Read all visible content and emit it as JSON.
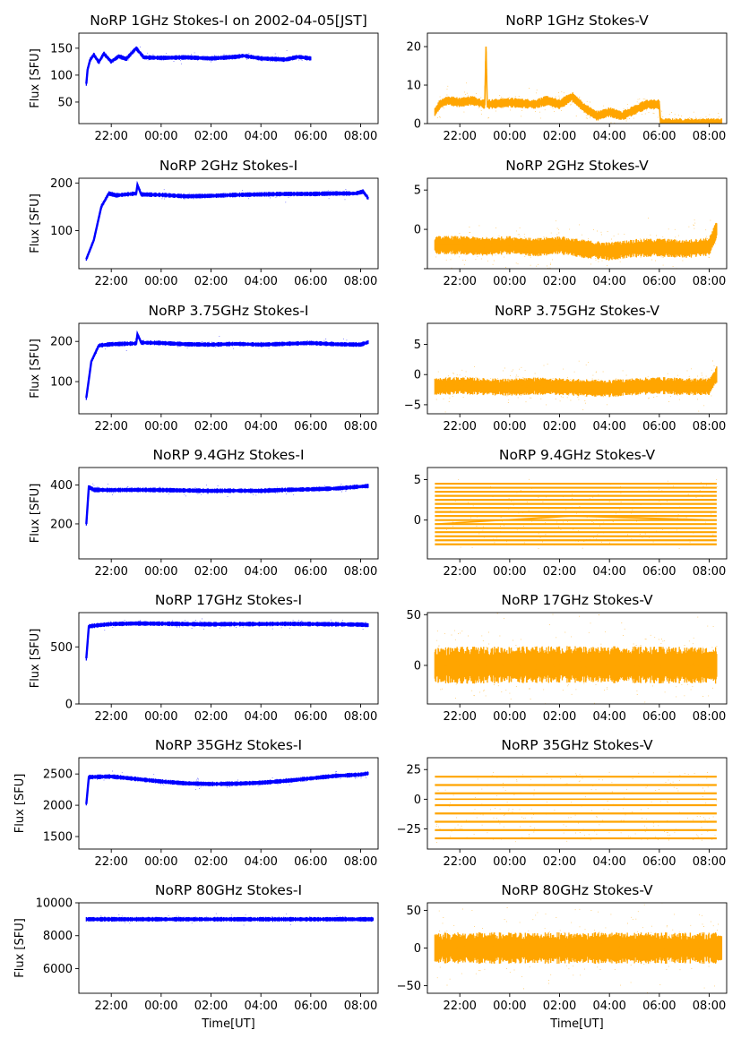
{
  "figure": {
    "xlabel": "Time[UT]",
    "x_tick_labels": [
      "22:00",
      "00:00",
      "02:00",
      "04:00",
      "06:00",
      "08:00"
    ],
    "colors": {
      "stokes_i": "#0000ff",
      "stokes_v": "#ffa500"
    }
  },
  "chart_data": [
    {
      "type": "scatter",
      "title": "NoRP 1GHz Stokes-I on 2002-04-05[JST]",
      "ylabel": "Flux [SFU]",
      "xlabel": "",
      "xlim": [
        20.7,
        32.7
      ],
      "ylim": [
        10,
        178
      ],
      "y_ticks": [
        50,
        100,
        150
      ],
      "y_tick_labels": [
        "50",
        "100",
        "150"
      ],
      "series": [
        {
          "color": "#0000ff",
          "x_range": [
            21.0,
            30.0
          ],
          "points": [
            [
              21.0,
              84
            ],
            [
              21.05,
              110
            ],
            [
              21.15,
              128
            ],
            [
              21.3,
              138
            ],
            [
              21.5,
              124
            ],
            [
              21.7,
              140
            ],
            [
              22.0,
              125
            ],
            [
              22.3,
              135
            ],
            [
              22.6,
              130
            ],
            [
              23.0,
              150
            ],
            [
              23.3,
              133
            ],
            [
              24.0,
              132
            ],
            [
              25.0,
              133
            ],
            [
              26.0,
              131
            ],
            [
              27.0,
              134
            ],
            [
              27.3,
              136
            ],
            [
              28.0,
              131
            ],
            [
              29.0,
              129
            ],
            [
              29.5,
              134
            ],
            [
              30.0,
              131
            ]
          ]
        }
      ]
    },
    {
      "type": "scatter",
      "title": "NoRP 1GHz Stokes-V",
      "ylabel": "",
      "xlabel": "",
      "xlim": [
        20.7,
        32.7
      ],
      "ylim": [
        0,
        23.5
      ],
      "y_ticks": [
        0,
        10,
        20
      ],
      "y_tick_labels": [
        "0",
        "10",
        "20"
      ],
      "series": [
        {
          "color": "#ffa500",
          "x_range": [
            21.0,
            32.5
          ],
          "points": [
            [
              21.0,
              3
            ],
            [
              21.2,
              5
            ],
            [
              21.5,
              6
            ],
            [
              22.0,
              5.5
            ],
            [
              22.5,
              6
            ],
            [
              23.0,
              5
            ],
            [
              23.05,
              20
            ],
            [
              23.1,
              5
            ],
            [
              24.0,
              5.5
            ],
            [
              25.0,
              5
            ],
            [
              25.5,
              6
            ],
            [
              26.0,
              5
            ],
            [
              26.5,
              7
            ],
            [
              27.0,
              4
            ],
            [
              27.5,
              2
            ],
            [
              28.0,
              3
            ],
            [
              28.5,
              2
            ],
            [
              29.0,
              3.5
            ],
            [
              29.5,
              5
            ],
            [
              30.0,
              5
            ],
            [
              30.05,
              0.1
            ],
            [
              32.5,
              0.1
            ]
          ]
        }
      ]
    },
    {
      "type": "scatter",
      "title": "NoRP 2GHz Stokes-I",
      "ylabel": "Flux [SFU]",
      "xlabel": "",
      "xlim": [
        20.7,
        32.7
      ],
      "ylim": [
        20,
        210
      ],
      "y_ticks": [
        100,
        200
      ],
      "y_tick_labels": [
        "100",
        "200"
      ],
      "series": [
        {
          "color": "#0000ff",
          "x_range": [
            21.0,
            32.3
          ],
          "points": [
            [
              21.0,
              40
            ],
            [
              21.3,
              80
            ],
            [
              21.6,
              150
            ],
            [
              21.9,
              178
            ],
            [
              22.2,
              174
            ],
            [
              23.0,
              178
            ],
            [
              23.05,
              196
            ],
            [
              23.2,
              176
            ],
            [
              24.0,
              175
            ],
            [
              25.0,
              172
            ],
            [
              26.0,
              173
            ],
            [
              27.0,
              175
            ],
            [
              28.0,
              176
            ],
            [
              29.0,
              177
            ],
            [
              30.0,
              177
            ],
            [
              31.0,
              178
            ],
            [
              31.8,
              178
            ],
            [
              32.1,
              182
            ],
            [
              32.3,
              168
            ]
          ]
        }
      ]
    },
    {
      "type": "scatter",
      "title": "NoRP 2GHz Stokes-V",
      "ylabel": "",
      "xlabel": "",
      "xlim": [
        20.7,
        32.7
      ],
      "ylim": [
        -5,
        6.5
      ],
      "y_ticks": [
        -5,
        0,
        5
      ],
      "y_tick_labels": [
        "",
        "0",
        "5"
      ],
      "series": [
        {
          "color": "#ffa500",
          "x_range": [
            21.0,
            32.3
          ],
          "points": [
            [
              21.0,
              -2
            ],
            [
              22.0,
              -2
            ],
            [
              23.0,
              -2.2
            ],
            [
              24.0,
              -2
            ],
            [
              25.0,
              -2.3
            ],
            [
              26.0,
              -2
            ],
            [
              27.0,
              -2.5
            ],
            [
              28.0,
              -2.8
            ],
            [
              29.0,
              -2.4
            ],
            [
              30.0,
              -2.3
            ],
            [
              31.0,
              -2.5
            ],
            [
              32.0,
              -2.2
            ],
            [
              32.3,
              0
            ]
          ]
        }
      ]
    },
    {
      "type": "scatter",
      "title": "NoRP 3.75GHz Stokes-I",
      "ylabel": "Flux [SFU]",
      "xlabel": "",
      "xlim": [
        20.7,
        32.7
      ],
      "ylim": [
        20,
        245
      ],
      "y_ticks": [
        100,
        200
      ],
      "y_tick_labels": [
        "100",
        "200"
      ],
      "series": [
        {
          "color": "#0000ff",
          "x_range": [
            21.0,
            32.3
          ],
          "points": [
            [
              21.0,
              60
            ],
            [
              21.2,
              150
            ],
            [
              21.5,
              190
            ],
            [
              22.0,
              193
            ],
            [
              23.0,
              195
            ],
            [
              23.05,
              218
            ],
            [
              23.2,
              197
            ],
            [
              24.0,
              196
            ],
            [
              25.0,
              193
            ],
            [
              26.0,
              192
            ],
            [
              27.0,
              194
            ],
            [
              28.0,
              192
            ],
            [
              29.0,
              194
            ],
            [
              30.0,
              196
            ],
            [
              31.0,
              193
            ],
            [
              32.0,
              192
            ],
            [
              32.3,
              198
            ]
          ]
        }
      ]
    },
    {
      "type": "scatter",
      "title": "NoRP 3.75GHz Stokes-V",
      "ylabel": "",
      "xlabel": "",
      "xlim": [
        20.7,
        32.7
      ],
      "ylim": [
        -6.5,
        8.5
      ],
      "y_ticks": [
        -5,
        0,
        5
      ],
      "y_tick_labels": [
        "−5",
        "0",
        "5"
      ],
      "series": [
        {
          "color": "#ffa500",
          "x_range": [
            21.0,
            32.3
          ],
          "points": [
            [
              21.0,
              -2
            ],
            [
              22.0,
              -1.8
            ],
            [
              23.0,
              -2
            ],
            [
              24.0,
              -2.1
            ],
            [
              25.0,
              -1.9
            ],
            [
              26.0,
              -2
            ],
            [
              27.0,
              -2.2
            ],
            [
              28.0,
              -2.3
            ],
            [
              29.0,
              -2
            ],
            [
              30.0,
              -1.8
            ],
            [
              31.0,
              -2
            ],
            [
              32.0,
              -2
            ],
            [
              32.3,
              0
            ]
          ]
        }
      ]
    },
    {
      "type": "scatter",
      "title": "NoRP 9.4GHz Stokes-I",
      "ylabel": "Flux [SFU]",
      "xlabel": "",
      "xlim": [
        20.7,
        32.7
      ],
      "ylim": [
        20,
        490
      ],
      "y_ticks": [
        200,
        400
      ],
      "y_tick_labels": [
        "200",
        "400"
      ],
      "series": [
        {
          "color": "#0000ff",
          "x_range": [
            21.0,
            32.3
          ],
          "points": [
            [
              21.0,
              200
            ],
            [
              21.1,
              390
            ],
            [
              21.3,
              375
            ],
            [
              22.0,
              374
            ],
            [
              23.0,
              375
            ],
            [
              24.0,
              374
            ],
            [
              25.0,
              372
            ],
            [
              26.0,
              370
            ],
            [
              27.0,
              371
            ],
            [
              28.0,
              370
            ],
            [
              29.0,
              375
            ],
            [
              30.0,
              378
            ],
            [
              31.0,
              382
            ],
            [
              32.0,
              392
            ],
            [
              32.3,
              395
            ]
          ]
        }
      ]
    },
    {
      "type": "scatter",
      "title": "NoRP 9.4GHz Stokes-V",
      "ylabel": "",
      "xlabel": "",
      "xlim": [
        20.7,
        32.7
      ],
      "ylim": [
        -4.8,
        6.5
      ],
      "y_ticks": [
        0,
        5
      ],
      "y_tick_labels": [
        "0",
        "5"
      ],
      "quantized_levels": [
        -3,
        -2.5,
        -2,
        -1.5,
        -1,
        -0.5,
        0,
        0.5,
        1,
        1.5,
        2,
        2.5,
        3,
        3.5,
        4,
        4.5
      ],
      "series": [
        {
          "color": "#ffa500",
          "x_range": [
            21.0,
            32.3
          ],
          "points": [
            [
              21.0,
              -0.5
            ],
            [
              26.5,
              0.5
            ],
            [
              32.3,
              0
            ]
          ]
        }
      ]
    },
    {
      "type": "scatter",
      "title": "NoRP 17GHz Stokes-I",
      "ylabel": "Flux [SFU]",
      "xlabel": "",
      "xlim": [
        20.7,
        32.7
      ],
      "ylim": [
        0,
        800
      ],
      "y_ticks": [
        0,
        500
      ],
      "y_tick_labels": [
        "0",
        "500"
      ],
      "series": [
        {
          "color": "#0000ff",
          "x_range": [
            21.0,
            32.3
          ],
          "points": [
            [
              21.0,
              400
            ],
            [
              21.1,
              680
            ],
            [
              21.5,
              690
            ],
            [
              22.0,
              700
            ],
            [
              23.0,
              705
            ],
            [
              24.0,
              703
            ],
            [
              25.0,
              700
            ],
            [
              26.0,
              698
            ],
            [
              27.0,
              700
            ],
            [
              28.0,
              700
            ],
            [
              29.0,
              702
            ],
            [
              30.0,
              700
            ],
            [
              31.0,
              698
            ],
            [
              32.0,
              695
            ],
            [
              32.3,
              690
            ]
          ]
        }
      ]
    },
    {
      "type": "scatter",
      "title": "NoRP 17GHz Stokes-V",
      "ylabel": "",
      "xlabel": "",
      "xlim": [
        20.7,
        32.7
      ],
      "ylim": [
        -38,
        52
      ],
      "y_ticks": [
        0,
        50
      ],
      "y_tick_labels": [
        "0",
        "50"
      ],
      "series": [
        {
          "color": "#ffa500",
          "x_range": [
            21.0,
            32.3
          ],
          "points": [
            [
              21.0,
              0
            ],
            [
              26.5,
              1
            ],
            [
              32.3,
              0
            ]
          ]
        }
      ]
    },
    {
      "type": "scatter",
      "title": "NoRP 35GHz Stokes-I",
      "ylabel": "Flux [SFU]",
      "xlabel": "",
      "xlim": [
        20.7,
        32.7
      ],
      "ylim": [
        1300,
        2760
      ],
      "y_ticks": [
        1500,
        2000,
        2500
      ],
      "y_tick_labels": [
        "1500",
        "2000",
        "2500"
      ],
      "series": [
        {
          "color": "#0000ff",
          "x_range": [
            21.0,
            32.3
          ],
          "points": [
            [
              21.0,
              2020
            ],
            [
              21.1,
              2450
            ],
            [
              22.0,
              2460
            ],
            [
              23.0,
              2420
            ],
            [
              24.0,
              2380
            ],
            [
              25.0,
              2350
            ],
            [
              26.0,
              2340
            ],
            [
              27.0,
              2345
            ],
            [
              28.0,
              2360
            ],
            [
              29.0,
              2390
            ],
            [
              30.0,
              2430
            ],
            [
              31.0,
              2470
            ],
            [
              32.0,
              2490
            ],
            [
              32.3,
              2510
            ]
          ]
        }
      ]
    },
    {
      "type": "scatter",
      "title": "NoRP 35GHz Stokes-V",
      "ylabel": "",
      "xlabel": "",
      "xlim": [
        20.7,
        32.7
      ],
      "ylim": [
        -42,
        35
      ],
      "y_ticks": [
        -25,
        0,
        25
      ],
      "y_tick_labels": [
        "−25",
        "0",
        "25"
      ],
      "quantized_levels": [
        -33,
        -26,
        -19,
        -12,
        -5,
        5,
        12,
        19
      ],
      "series": [
        {
          "color": "#ffa500",
          "x_range": [
            21.0,
            32.3
          ],
          "points": [
            [
              21.0,
              0
            ],
            [
              26.5,
              0
            ],
            [
              32.3,
              0
            ]
          ]
        }
      ]
    },
    {
      "type": "scatter",
      "title": "NoRP 80GHz Stokes-I",
      "ylabel": "Flux [SFU]",
      "xlabel": "Time[UT]",
      "xlim": [
        20.7,
        32.7
      ],
      "ylim": [
        4500,
        10000
      ],
      "y_ticks": [
        6000,
        8000,
        10000
      ],
      "y_tick_labels": [
        "6000",
        "8000",
        "10000"
      ],
      "series": [
        {
          "color": "#0000ff",
          "x_range": [
            21.0,
            32.5
          ],
          "points": [
            [
              21.0,
              9000
            ],
            [
              32.5,
              9000
            ]
          ]
        }
      ]
    },
    {
      "type": "scatter",
      "title": "NoRP 80GHz Stokes-V",
      "ylabel": "",
      "xlabel": "Time[UT]",
      "xlim": [
        20.7,
        32.7
      ],
      "ylim": [
        -60,
        60
      ],
      "y_ticks": [
        -50,
        0,
        50
      ],
      "y_tick_labels": [
        "−50",
        "0",
        "50"
      ],
      "series": [
        {
          "color": "#ffa500",
          "x_range": [
            21.0,
            32.5
          ],
          "points": [
            [
              21.0,
              0
            ],
            [
              26.5,
              0
            ],
            [
              32.5,
              0
            ]
          ]
        }
      ]
    }
  ]
}
